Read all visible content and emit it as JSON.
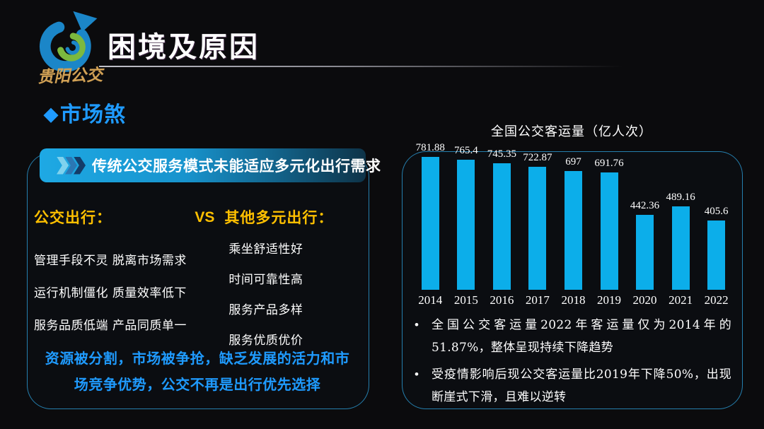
{
  "slide": {
    "logo": {
      "brand_name": "贵阳公交"
    },
    "title": "困境及原因",
    "section": {
      "icon_glyph": "◆",
      "heading": "市场煞"
    }
  },
  "left_panel": {
    "header": "传统公交服务模式未能适应多元化出行需求",
    "comparison": {
      "left_title": "公交出行：",
      "vs_label": "VS",
      "right_title": "其他多元出行：",
      "left_items": [
        "管理手段不灵 脱离市场需求",
        "运行机制僵化 质量效率低下",
        "服务品质低端 产品同质单一"
      ],
      "right_items": [
        "乘坐舒适性好",
        "时间可靠性高",
        "服务产品多样",
        "服务优质优价"
      ]
    },
    "conclusion": "资源被分割，市场被争抢，缺乏发展的活力和市场竞争优势，公交不再是出行优先选择"
  },
  "right_panel": {
    "bullet_glyph": "•",
    "bullets": [
      "全国公交客运量2022年客运量仅为2014年的51.87%，整体呈现持续下降趋势",
      "受疫情影响后现公交客运量比2019年下降50%，出现断崖式下滑，且难以逆转"
    ]
  },
  "chart_data": {
    "type": "bar",
    "title": "全国公交客运量（亿人次）",
    "categories": [
      "2014",
      "2015",
      "2016",
      "2017",
      "2018",
      "2019",
      "2020",
      "2021",
      "2022"
    ],
    "values": [
      781.88,
      765.4,
      745.35,
      722.87,
      697,
      691.76,
      442.36,
      489.16,
      405.6
    ],
    "xlabel": "",
    "ylabel": "",
    "ylim": [
      0,
      800
    ],
    "grid": false,
    "legend": "none",
    "data_labels": true,
    "bar_color": "#0caeea"
  },
  "colors": {
    "accent_blue": "#1f9bff",
    "gold": "#FFC000",
    "bar_blue": "#0caeea",
    "brand_gold": "#d1a155",
    "logo_blue": "#1b86c8",
    "logo_green": "#7cb93e",
    "header_gradient_start": "#1ea9e4",
    "header_gradient_end": "#0e3348"
  }
}
